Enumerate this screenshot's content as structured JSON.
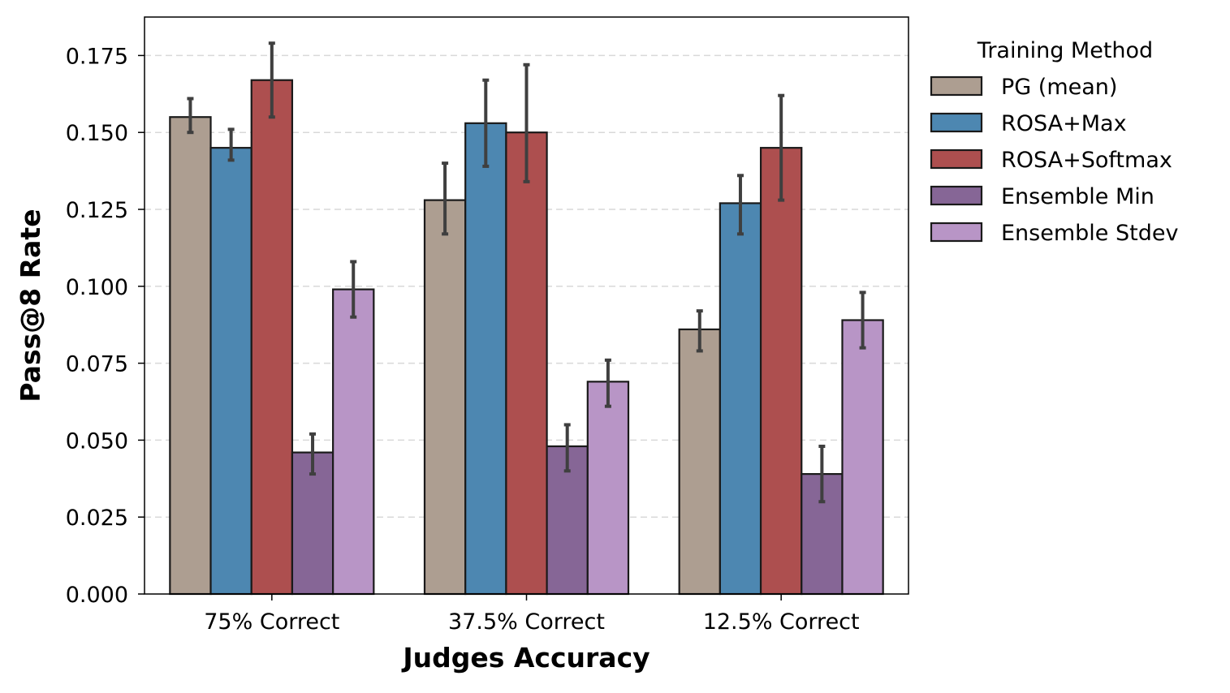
{
  "chart_data": {
    "type": "bar",
    "xlabel": "Judges Accuracy",
    "ylabel": "Pass@8 Rate",
    "categories": [
      "75% Correct",
      "37.5% Correct",
      "12.5% Correct"
    ],
    "ylim": [
      0,
      0.1875
    ],
    "yticks": [
      "0.000",
      "0.025",
      "0.050",
      "0.075",
      "0.100",
      "0.125",
      "0.150",
      "0.175"
    ],
    "grid": "y-dashed",
    "error_bars": true,
    "legend": {
      "title": "Training Method",
      "placement": "right-outside"
    },
    "series": [
      {
        "name": "PG (mean)",
        "color": "#ad9e91",
        "values": [
          0.155,
          0.128,
          0.086
        ],
        "err_low": [
          0.15,
          0.117,
          0.079
        ],
        "err_high": [
          0.161,
          0.14,
          0.092
        ]
      },
      {
        "name": "ROSA+Max",
        "color": "#4d87b1",
        "values": [
          0.145,
          0.153,
          0.127
        ],
        "err_low": [
          0.141,
          0.139,
          0.117
        ],
        "err_high": [
          0.151,
          0.167,
          0.136
        ]
      },
      {
        "name": "ROSA+Softmax",
        "color": "#ad4f4f",
        "values": [
          0.167,
          0.15,
          0.145
        ],
        "err_low": [
          0.155,
          0.134,
          0.128
        ],
        "err_high": [
          0.179,
          0.172,
          0.162
        ]
      },
      {
        "name": "Ensemble Min",
        "color": "#866696",
        "values": [
          0.046,
          0.048,
          0.039
        ],
        "err_low": [
          0.039,
          0.04,
          0.03
        ],
        "err_high": [
          0.052,
          0.055,
          0.048
        ]
      },
      {
        "name": "Ensemble Stdev",
        "color": "#b895c6",
        "values": [
          0.099,
          0.069,
          0.089
        ],
        "err_low": [
          0.09,
          0.061,
          0.08
        ],
        "err_high": [
          0.108,
          0.076,
          0.098
        ]
      }
    ]
  }
}
